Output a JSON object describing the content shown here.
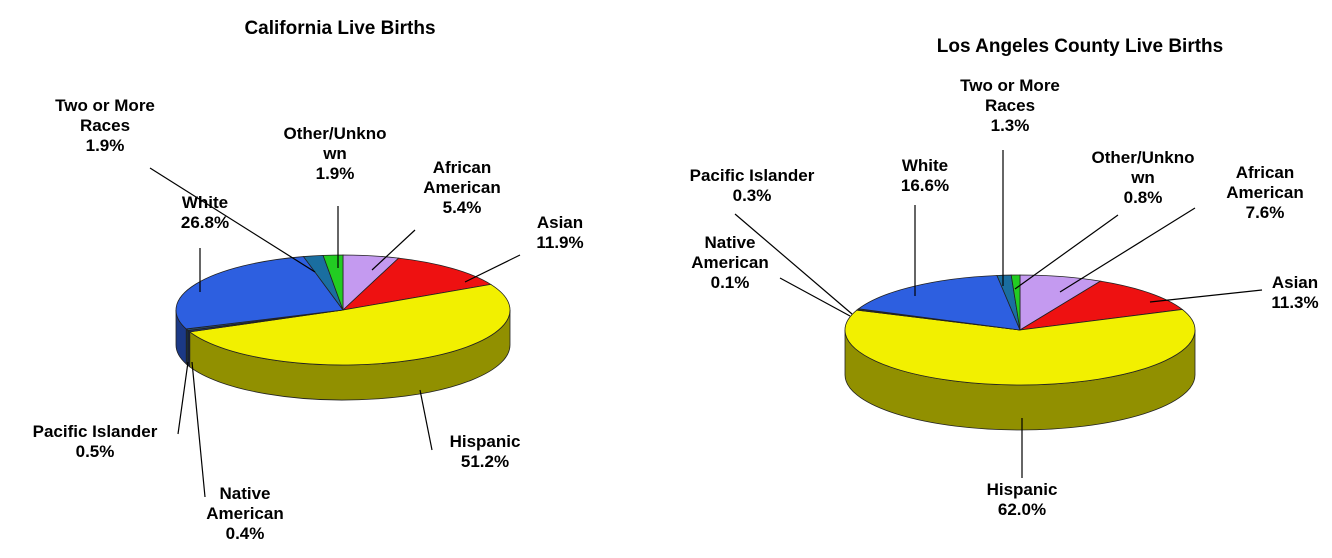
{
  "chart_data": [
    {
      "type": "pie",
      "title": "California Live Births",
      "categories": [
        "African American",
        "Asian",
        "Hispanic",
        "Native American",
        "Pacific Islander",
        "White",
        "Two or More Races",
        "Other/Unknown"
      ],
      "values": [
        5.4,
        11.9,
        51.2,
        0.4,
        0.5,
        26.8,
        1.9,
        1.9
      ],
      "value_labels": [
        "5.4%",
        "11.9%",
        "51.2%",
        "0.4%",
        "0.5%",
        "26.8%",
        "1.9%",
        "1.9%"
      ],
      "colors": [
        "#c49af0",
        "#ee1111",
        "#f2f000",
        "#203a80",
        "#2a5070",
        "#2d5fe0",
        "#1a6ea0",
        "#22cc22"
      ]
    },
    {
      "type": "pie",
      "title": "Los Angeles County Live Births",
      "categories": [
        "African American",
        "Asian",
        "Hispanic",
        "Native American",
        "Pacific Islander",
        "White",
        "Two or More Races",
        "Other/Unknown"
      ],
      "values": [
        7.6,
        11.3,
        62.0,
        0.1,
        0.3,
        16.6,
        1.3,
        0.8
      ],
      "value_labels": [
        "7.6%",
        "11.3%",
        "62.0%",
        "0.1%",
        "0.3%",
        "16.6%",
        "1.3%",
        "0.8%"
      ],
      "colors": [
        "#c49af0",
        "#ee1111",
        "#f2f000",
        "#203a80",
        "#2a5070",
        "#2d5fe0",
        "#1a6ea0",
        "#22cc22"
      ]
    }
  ]
}
